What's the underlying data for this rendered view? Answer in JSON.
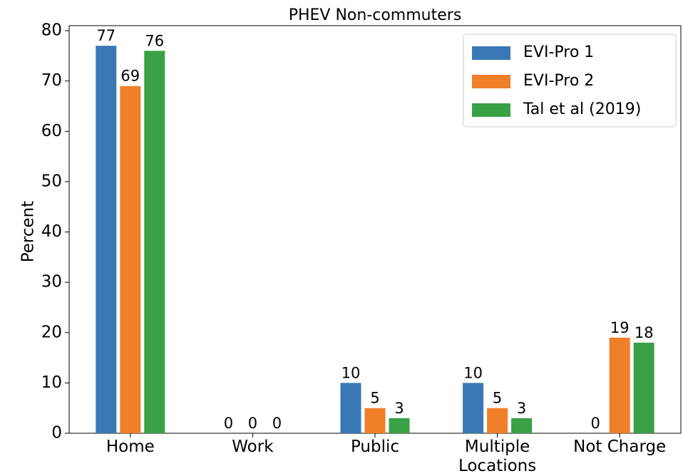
{
  "chart_data": {
    "type": "bar",
    "title": "PHEV Non-commuters",
    "ylabel": "Percent",
    "categories": [
      "Home",
      "Work",
      "Public",
      "Multiple Locations",
      "Not Charge"
    ],
    "series": [
      {
        "name": "EVI-Pro 1",
        "color": "#3a78b5",
        "values": [
          77,
          0,
          10,
          10,
          0
        ]
      },
      {
        "name": "EVI-Pro 2",
        "color": "#f07f2a",
        "values": [
          69,
          0,
          5,
          5,
          19
        ]
      },
      {
        "name": "Tal et al (2019)",
        "color": "#3aa045",
        "values": [
          76,
          0,
          3,
          3,
          18
        ]
      }
    ],
    "ylim": [
      0,
      81
    ],
    "yticks": [
      0,
      10,
      20,
      30,
      40,
      50,
      60,
      70,
      80
    ],
    "grid": false,
    "legend": "upper right"
  }
}
